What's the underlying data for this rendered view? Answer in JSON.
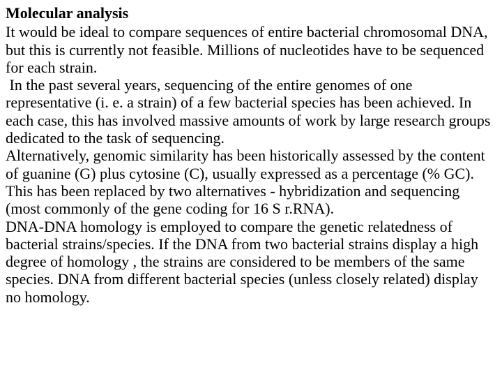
{
  "slide": {
    "heading": "Molecular analysis",
    "body": "It would be ideal to compare sequences of entire bacterial chromosomal DNA, but this is currently not feasible. Millions of nucleotides have to be sequenced for each strain.\n In the past several years, sequencing of the entire genomes of one representative (i. e. a strain) of a few bacterial species has been achieved. In each case, this has involved massive amounts of work by large research groups dedicated to the task of sequencing.\nAlternatively, genomic similarity has been historically assessed by the content of guanine (G) plus cytosine (C), usually expressed as a percentage (% GC). This has been replaced by two alternatives - hybridization and sequencing (most commonly of the gene coding for 16 S r.RNA).\nDNA-DNA homology is employed to compare the genetic relatedness of bacterial strains/species. If the DNA from two bacterial strains display a high degree of homology , the strains are considered to be members of the same species. DNA from different bacterial species (unless closely related) display no homology.",
    "heading_fontsize": 22,
    "body_fontsize": 22,
    "font_family": "Times New Roman",
    "text_color": "#000000",
    "background_color": "#ffffff",
    "line_height": 1.15
  }
}
